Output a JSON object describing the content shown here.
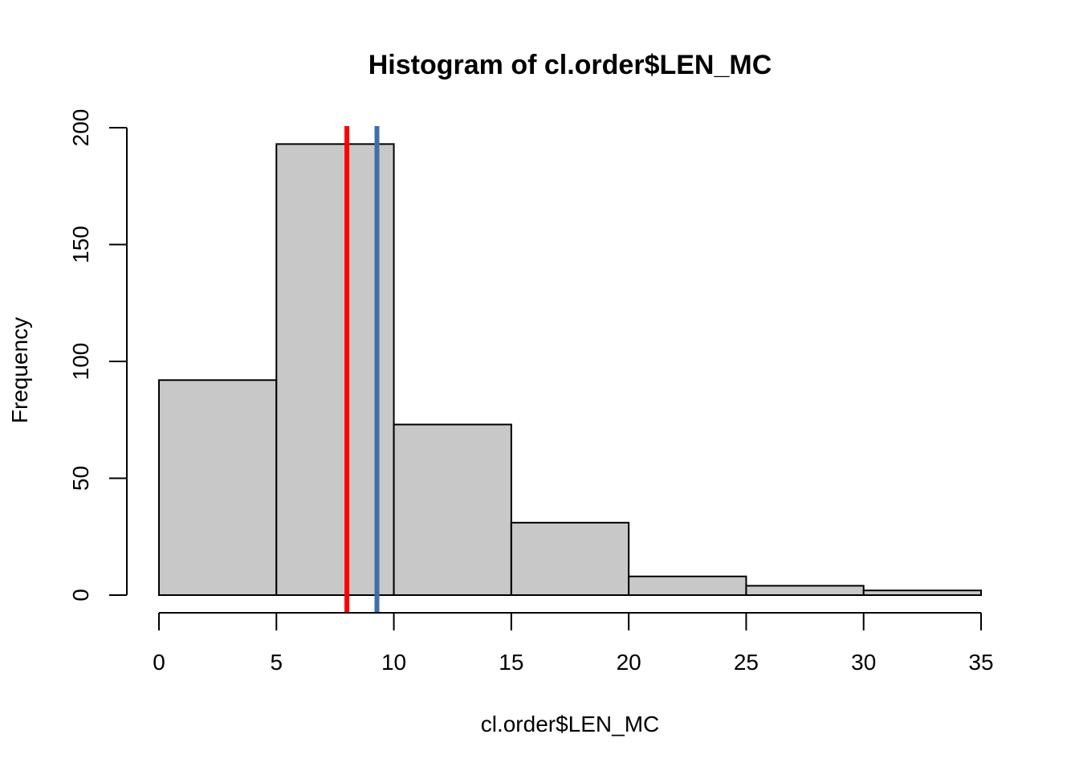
{
  "chart_data": {
    "type": "bar",
    "title": "Histogram of cl.order$LEN_MC",
    "xlabel": "cl.order$LEN_MC",
    "ylabel": "Frequency",
    "bins": [
      {
        "start": 0,
        "end": 5,
        "count": 92
      },
      {
        "start": 5,
        "end": 10,
        "count": 193
      },
      {
        "start": 10,
        "end": 15,
        "count": 73
      },
      {
        "start": 15,
        "end": 20,
        "count": 31
      },
      {
        "start": 20,
        "end": 25,
        "count": 8
      },
      {
        "start": 25,
        "end": 30,
        "count": 4
      },
      {
        "start": 30,
        "end": 35,
        "count": 2
      }
    ],
    "xlim": [
      0,
      35
    ],
    "ylim": [
      0,
      200
    ],
    "x_ticks": [
      0,
      5,
      10,
      15,
      20,
      25,
      30,
      35
    ],
    "y_ticks": [
      0,
      50,
      100,
      150,
      200
    ],
    "bar_fill": "#c8c8c8",
    "bar_stroke": "#000000",
    "grid": false,
    "reference_lines": [
      {
        "x": 8.0,
        "color": "#ff0000"
      },
      {
        "x": 9.28,
        "color": "#3f6fa6"
      }
    ]
  }
}
